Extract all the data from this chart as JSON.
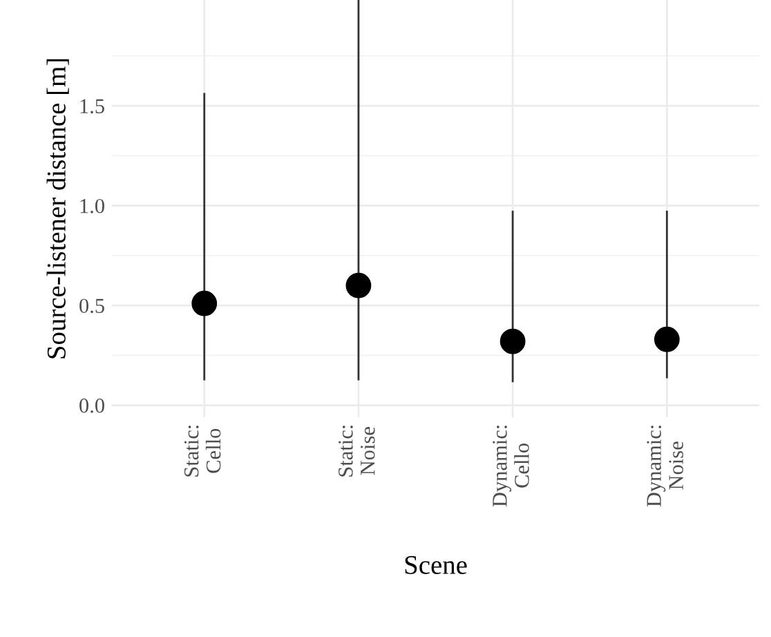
{
  "chart_data": {
    "type": "scatter",
    "xlabel": "Scene",
    "ylabel": "Source-listener distance [m]",
    "categories": [
      "Static:\nCello",
      "Static:\nNoise",
      "Dynamic:\nCello",
      "Dynamic:\nNoise"
    ],
    "series": [
      {
        "color": "#000000",
        "values": [
          0.51,
          0.6,
          0.32,
          0.33
        ],
        "errors": [
          [
            0.13,
            1.56
          ],
          [
            0.13,
            2.03
          ],
          [
            0.12,
            0.97
          ],
          [
            0.14,
            0.97
          ]
        ]
      }
    ],
    "ylim": [
      -0.06,
      2.03
    ],
    "yticks": [
      {
        "value": 0,
        "label": "0.0"
      },
      0.5,
      {
        "value": 1,
        "label": "1.0"
      },
      1.5
    ],
    "grid": true,
    "marker": "circle"
  }
}
